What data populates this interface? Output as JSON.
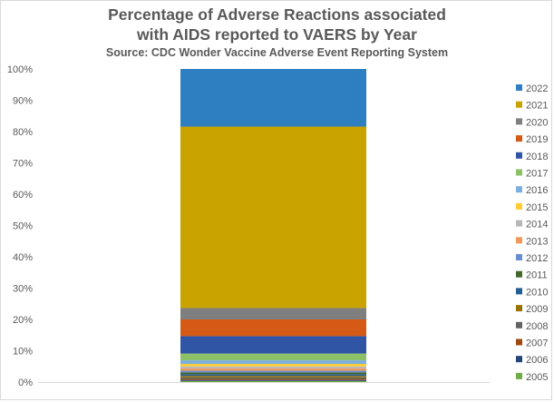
{
  "chart_data": {
    "type": "bar",
    "stacked": true,
    "percent_stacked": true,
    "title": "Percentage of Adverse Reactions associated with AIDS reported to VAERS by Year",
    "title_lines": [
      "Percentage of Adverse Reactions associated",
      "with AIDS reported to VAERS by Year"
    ],
    "subtitle": "Source: CDC Wonder Vaccine Adverse Event Reporting System",
    "categories": [
      ""
    ],
    "ylim": [
      0,
      100
    ],
    "yticks": [
      "0%",
      "10%",
      "20%",
      "30%",
      "40%",
      "50%",
      "60%",
      "70%",
      "80%",
      "90%",
      "100%"
    ],
    "grid": false,
    "legend_position": "right",
    "series": [
      {
        "name": "2005",
        "color": "#70AD47",
        "values": [
          0.3
        ]
      },
      {
        "name": "2006",
        "color": "#264478",
        "values": [
          0.3
        ]
      },
      {
        "name": "2007",
        "color": "#9E480E",
        "values": [
          0.3
        ]
      },
      {
        "name": "2008",
        "color": "#636363",
        "values": [
          0.4
        ]
      },
      {
        "name": "2009",
        "color": "#997300",
        "values": [
          0.4
        ]
      },
      {
        "name": "2010",
        "color": "#255E91",
        "values": [
          0.5
        ]
      },
      {
        "name": "2011",
        "color": "#43682B",
        "values": [
          0.5
        ]
      },
      {
        "name": "2012",
        "color": "#698ED0",
        "values": [
          0.5
        ]
      },
      {
        "name": "2013",
        "color": "#F1975A",
        "values": [
          0.6
        ]
      },
      {
        "name": "2014",
        "color": "#B7B7B7",
        "values": [
          0.6
        ]
      },
      {
        "name": "2015",
        "color": "#FFCD33",
        "values": [
          0.7
        ]
      },
      {
        "name": "2016",
        "color": "#7CAFDD",
        "values": [
          1.0
        ]
      },
      {
        "name": "2017",
        "color": "#8CC168",
        "values": [
          1.9
        ]
      },
      {
        "name": "2018",
        "color": "#2F55A4",
        "values": [
          4.9
        ]
      },
      {
        "name": "2019",
        "color": "#D45A16",
        "values": [
          4.7
        ]
      },
      {
        "name": "2020",
        "color": "#7F7F7F",
        "values": [
          3.2
        ]
      },
      {
        "name": "2021",
        "color": "#C9A300",
        "values": [
          51.0
        ]
      },
      {
        "name": "2022",
        "color": "#2E7FC2",
        "values": [
          16.2
        ]
      }
    ]
  }
}
